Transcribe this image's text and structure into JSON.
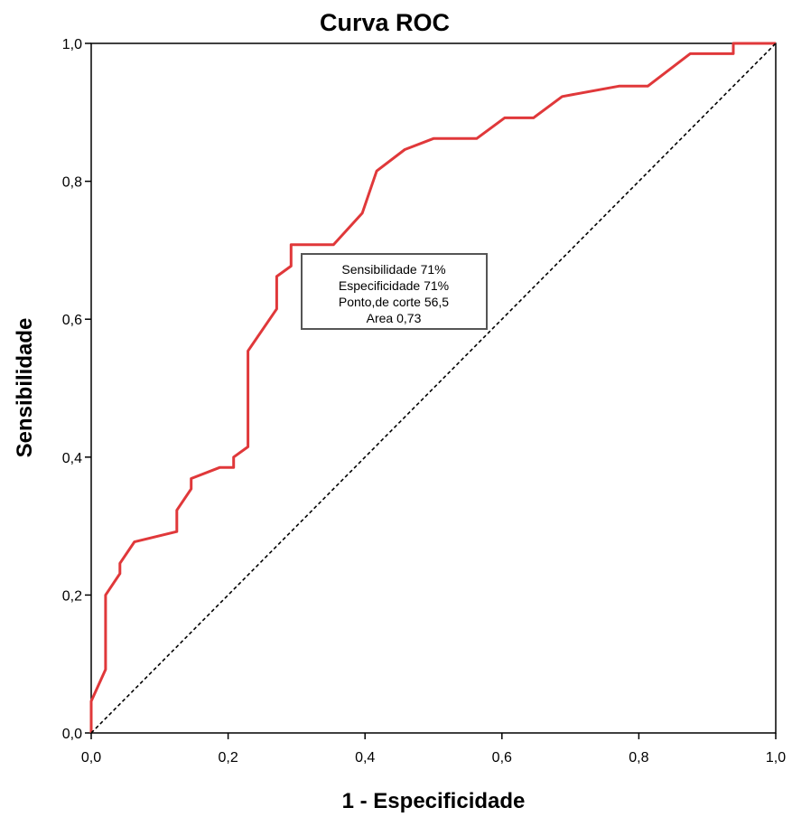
{
  "chart_data": {
    "type": "line",
    "title": "Curva ROC",
    "xlabel": "1 - Especificidade",
    "ylabel": "Sensibilidade",
    "xlim": [
      0,
      1
    ],
    "ylim": [
      0,
      1
    ],
    "x_ticks": [
      "0,0",
      "0,2",
      "0,4",
      "0,6",
      "0,8",
      "1,0"
    ],
    "y_ticks": [
      "0,0",
      "0,2",
      "0,4",
      "0,6",
      "0,8",
      "1,0"
    ],
    "grid": false,
    "series": [
      {
        "color": "#e0383a",
        "x": [
          0.0,
          0.0,
          0.021,
          0.021,
          0.042,
          0.042,
          0.063,
          0.125,
          0.125,
          0.146,
          0.146,
          0.188,
          0.208,
          0.208,
          0.229,
          0.229,
          0.271,
          0.271,
          0.292,
          0.292,
          0.354,
          0.396,
          0.417,
          0.458,
          0.5,
          0.563,
          0.604,
          0.646,
          0.688,
          0.771,
          0.813,
          0.875,
          0.938,
          0.938,
          1.0
        ],
        "y": [
          0.0,
          0.046,
          0.092,
          0.2,
          0.231,
          0.246,
          0.277,
          0.292,
          0.323,
          0.354,
          0.369,
          0.385,
          0.385,
          0.4,
          0.415,
          0.554,
          0.615,
          0.662,
          0.677,
          0.708,
          0.708,
          0.754,
          0.815,
          0.846,
          0.862,
          0.862,
          0.892,
          0.892,
          0.923,
          0.938,
          0.938,
          0.985,
          0.985,
          1.0,
          1.0
        ]
      },
      {
        "color": "#000000",
        "dashed": true,
        "x": [
          0,
          1
        ],
        "y": [
          0,
          1
        ]
      }
    ],
    "annotation": {
      "lines": [
        "Sensibilidade 71%",
        "Especificidade 71%",
        "Ponto,de corte 56,5",
        "Area 0,73"
      ],
      "position": "center"
    }
  }
}
